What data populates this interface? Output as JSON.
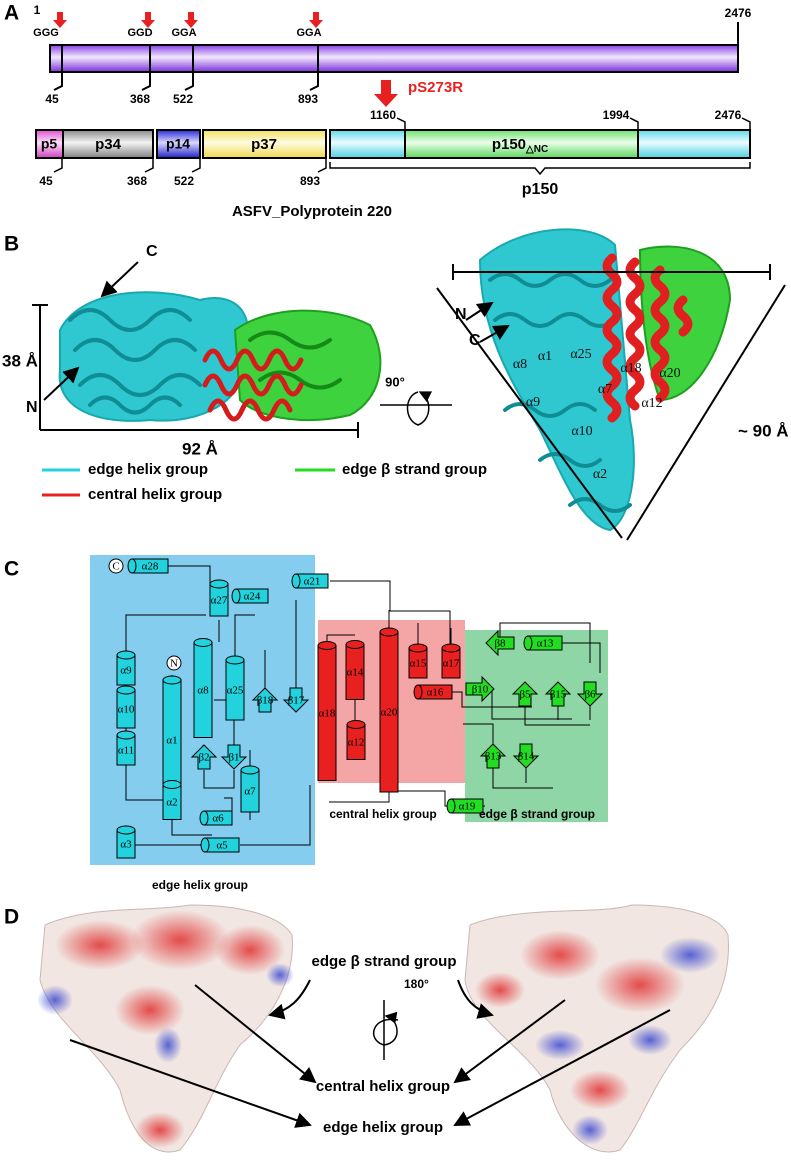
{
  "panel_a": {
    "label": "A",
    "start": 1,
    "end": 2476,
    "sites": [
      "GGG",
      "GGD",
      "GGA",
      "GGA"
    ],
    "site_positions": [
      45,
      368,
      522,
      893
    ],
    "protease": "pS273R",
    "upper_positions": [
      1160,
      1994,
      2476
    ],
    "segments": [
      "p5",
      "p34",
      "p14",
      "p37"
    ],
    "p150_main": "p150",
    "p150_sub": "△NC",
    "lower_positions": [
      45,
      368,
      522,
      893
    ],
    "brace_label": "p150",
    "caption": "ASFV_Polyprotein 220"
  },
  "panel_b": {
    "label": "B",
    "left": {
      "c": "C",
      "n": "N",
      "height": "38 Å",
      "width": "92 Å"
    },
    "rotation": "90°",
    "right": {
      "n": "N",
      "c": "C",
      "helices": [
        "α8",
        "α1",
        "α25",
        "α18",
        "α20",
        "α7",
        "α12",
        "α9",
        "α10",
        "α2"
      ],
      "size": "~ 90 Å"
    },
    "legend": [
      "edge helix group",
      "edge β strand group",
      "central helix group"
    ]
  },
  "panel_c": {
    "label": "C",
    "elements": [
      "C",
      "α28",
      "α27",
      "α24",
      "α21",
      "α9",
      "N",
      "α8",
      "α25",
      "β18",
      "β17",
      "α10",
      "α1",
      "α11",
      "β2",
      "β1",
      "α2",
      "α7",
      "α6",
      "α3",
      "α5",
      "α18",
      "α14",
      "α20",
      "α15",
      "α17",
      "α16",
      "α12",
      "β10",
      "β8",
      "α13",
      "β5",
      "β15",
      "β6",
      "β13",
      "β14",
      "α19"
    ],
    "groups": [
      "central helix group",
      "edge β strand group",
      "edge helix group"
    ]
  },
  "panel_d": {
    "label": "D",
    "rotation": "180°",
    "labels": [
      "edge β strand group",
      "central helix group",
      "edge helix group"
    ]
  }
}
